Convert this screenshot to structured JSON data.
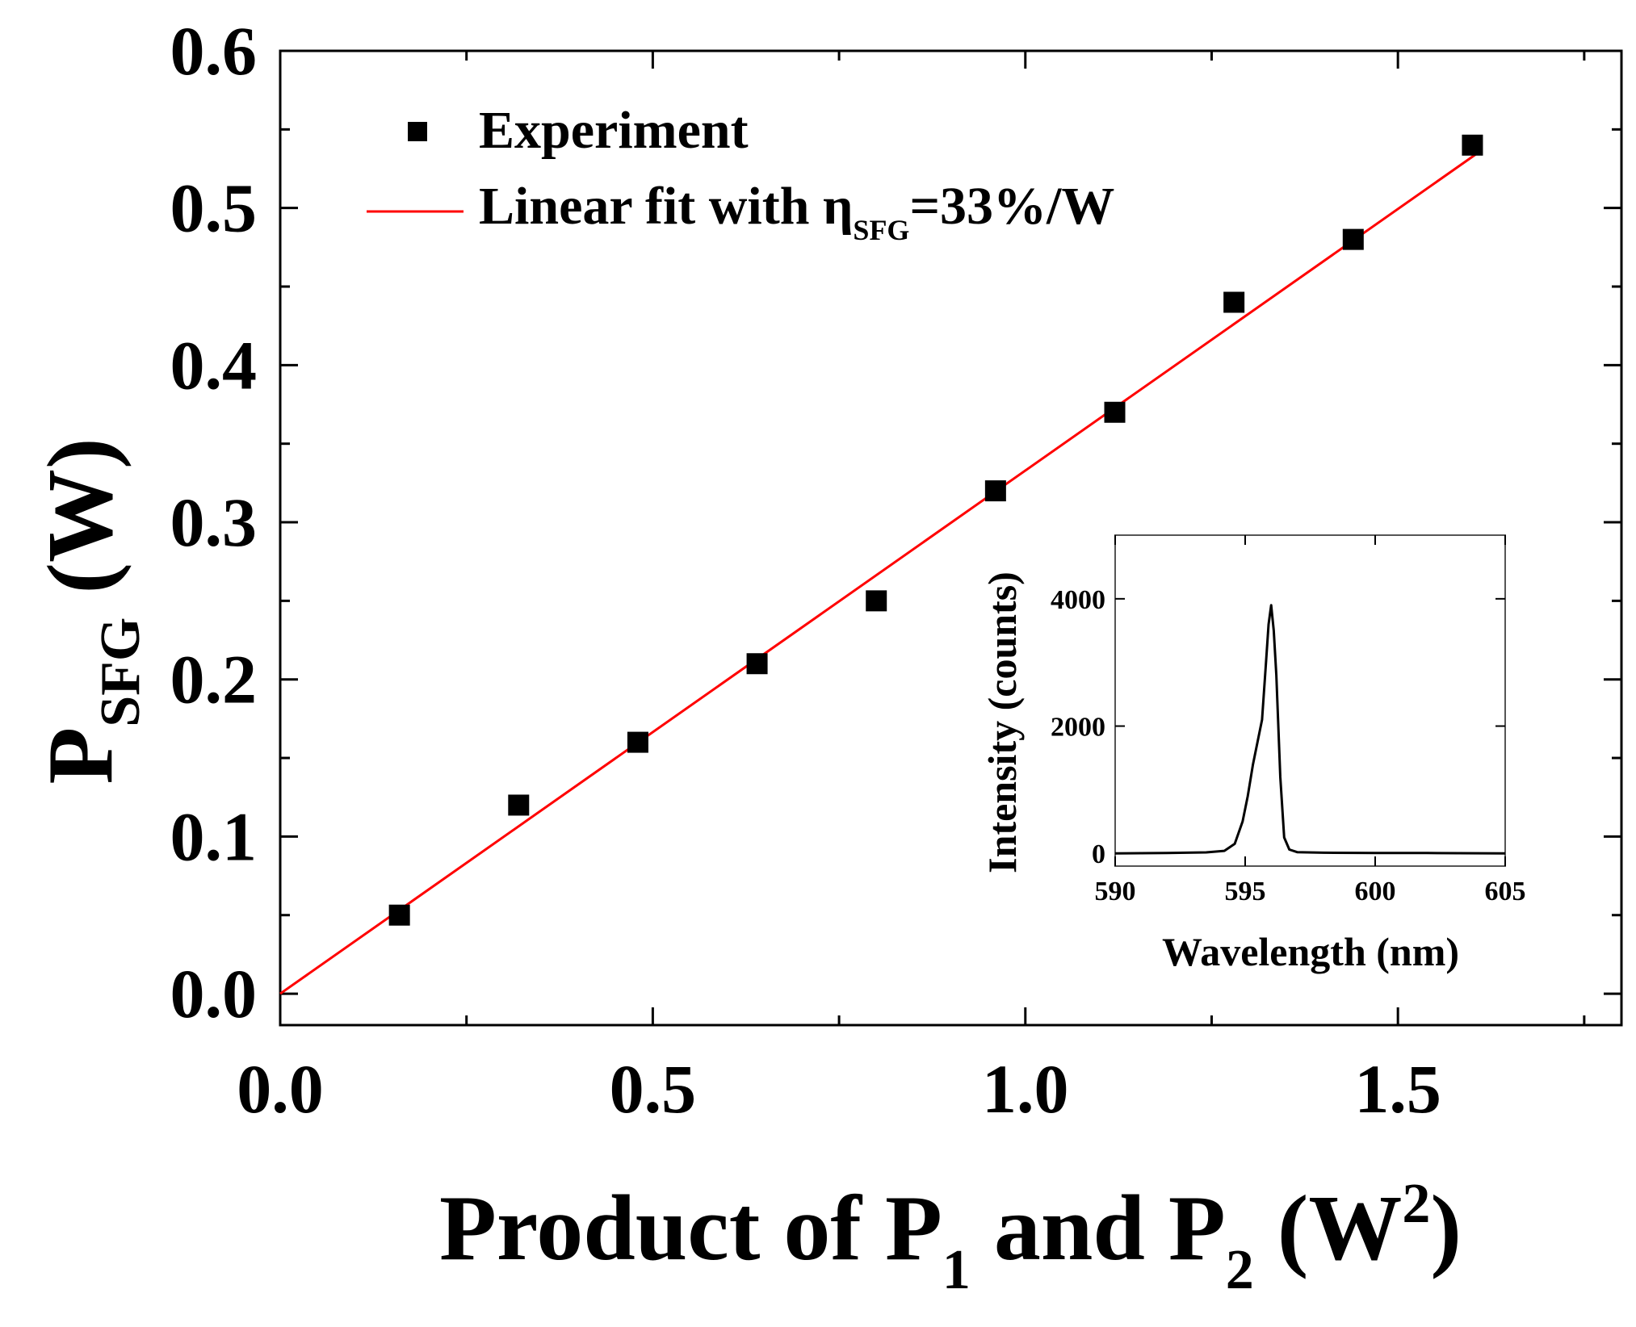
{
  "chart_data": [
    {
      "type": "scatter",
      "xlabel": {
        "parts": [
          "Product of P",
          "1",
          " and P",
          "2",
          " (W",
          "2",
          ")"
        ]
      },
      "ylabel": {
        "parts": [
          "P",
          "SFG",
          " (W)"
        ]
      },
      "xlim": [
        0,
        1.8
      ],
      "ylim": [
        -0.02,
        0.6
      ],
      "xticks": [
        "0.0",
        "0.5",
        "1.0",
        "1.5"
      ],
      "yticks": [
        "0.0",
        "0.1",
        "0.2",
        "0.3",
        "0.4",
        "0.5",
        "0.6"
      ],
      "legend_position": "top-left",
      "series": [
        {
          "name": "Experiment",
          "type": "scatter",
          "marker": "square",
          "color": "#000000",
          "x": [
            0.16,
            0.32,
            0.48,
            0.64,
            0.8,
            0.96,
            1.12,
            1.28,
            1.44,
            1.6
          ],
          "y": [
            0.05,
            0.12,
            0.16,
            0.21,
            0.25,
            0.32,
            0.37,
            0.44,
            0.48,
            0.54
          ]
        },
        {
          "name": "Linear fit with ηSFG=33%/W",
          "name_parts": [
            "Linear fit with η",
            "SFG",
            "=33%/W"
          ],
          "type": "line",
          "color": "#ff0000",
          "x": [
            0,
            1.61
          ],
          "y": [
            0,
            0.536
          ]
        }
      ]
    },
    {
      "type": "line",
      "inset": true,
      "xlabel": "Wavelength (nm)",
      "ylabel": "Intensity (counts)",
      "xlim": [
        590,
        605
      ],
      "ylim": [
        -200,
        5000
      ],
      "xticks": [
        "590",
        "595",
        "600",
        "605"
      ],
      "yticks": [
        "0",
        "2000",
        "4000"
      ],
      "series": [
        {
          "color": "#000000",
          "x": [
            590,
            592,
            593.5,
            594.2,
            594.6,
            594.9,
            595.1,
            595.3,
            595.5,
            595.65,
            595.8,
            595.9,
            596.0,
            596.1,
            596.2,
            596.35,
            596.5,
            596.7,
            597,
            598,
            600,
            602,
            605
          ],
          "y": [
            0,
            5,
            15,
            40,
            150,
            500,
            900,
            1400,
            1800,
            2100,
            3000,
            3600,
            3900,
            3500,
            2800,
            1200,
            250,
            60,
            20,
            10,
            5,
            5,
            0
          ]
        }
      ]
    }
  ]
}
